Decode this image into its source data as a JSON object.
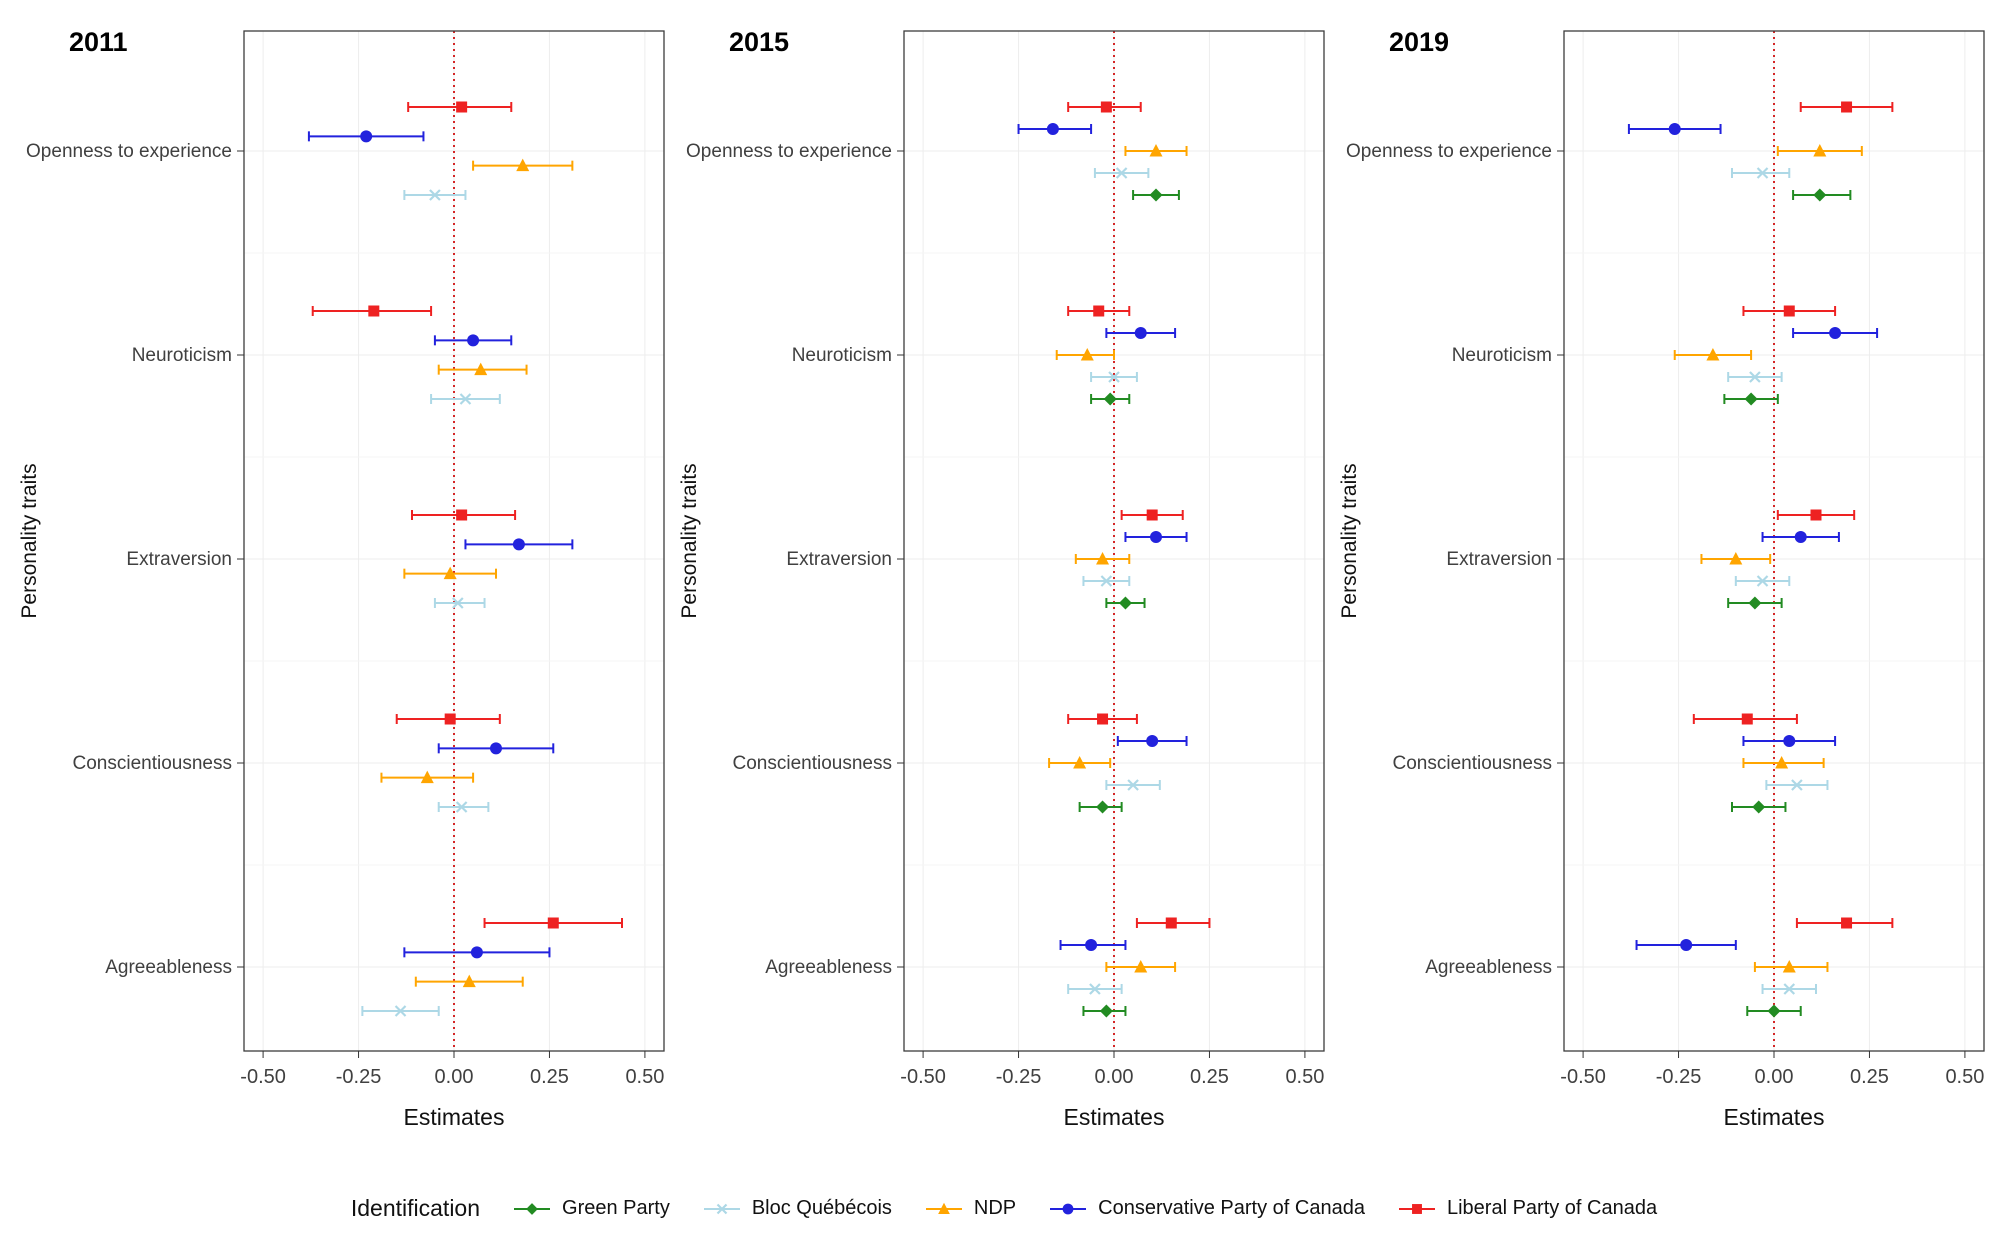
{
  "figure": {
    "background": "#ffffff",
    "legend": {
      "title": "Identification",
      "position": "bottom",
      "order": [
        "Green Party",
        "Bloc Québécois",
        "NDP",
        "Conservative Party of Canada",
        "Liberal Party of Canada"
      ]
    }
  },
  "chart_data": {
    "type": "pointrange",
    "xlabel": "Estimates",
    "ylabel": "Personality traits",
    "xlim": [
      -0.55,
      0.55
    ],
    "x_tick_values": [
      -0.5,
      -0.25,
      0,
      0.25,
      0.5
    ],
    "x_tick_labels": [
      "-0.50",
      "-0.25",
      "0.00",
      "0.25",
      "0.50"
    ],
    "grid": "light gray major gridlines, white panel background, thin dark panel border",
    "reference_line": {
      "x": 0,
      "color": "#CC0000",
      "style": "dotted"
    },
    "traits": [
      "Openness to experience",
      "Neuroticism",
      "Extraversion",
      "Conscientiousness",
      "Agreeableness"
    ],
    "row_order_top_to_bottom": [
      "Liberal Party of Canada",
      "Conservative Party of Canada",
      "NDP",
      "Bloc Québécois",
      "Green Party"
    ],
    "value_format": [
      "estimate",
      "ci_low",
      "ci_high"
    ],
    "parties": {
      "Green Party": {
        "marker": "diamond",
        "color": "#228B22"
      },
      "Bloc Québécois": {
        "marker": "x",
        "color": "#ADD8E6"
      },
      "NDP": {
        "marker": "triangle",
        "color": "#FFA500"
      },
      "Conservative Party of Canada": {
        "marker": "circle",
        "color": "#2222DD"
      },
      "Liberal Party of Canada": {
        "marker": "square",
        "color": "#EE2222"
      }
    },
    "panels": [
      {
        "title": "2011",
        "series": [
          {
            "party": "Liberal Party of Canada",
            "values": [
              [
                0.02,
                -0.12,
                0.15
              ],
              [
                -0.21,
                -0.37,
                -0.06
              ],
              [
                0.02,
                -0.11,
                0.16
              ],
              [
                -0.01,
                -0.15,
                0.12
              ],
              [
                0.26,
                0.08,
                0.44
              ]
            ]
          },
          {
            "party": "Conservative Party of Canada",
            "values": [
              [
                -0.23,
                -0.38,
                -0.08
              ],
              [
                0.05,
                -0.05,
                0.15
              ],
              [
                0.17,
                0.03,
                0.31
              ],
              [
                0.11,
                -0.04,
                0.26
              ],
              [
                0.06,
                -0.13,
                0.25
              ]
            ]
          },
          {
            "party": "NDP",
            "values": [
              [
                0.18,
                0.05,
                0.31
              ],
              [
                0.07,
                -0.04,
                0.19
              ],
              [
                -0.01,
                -0.13,
                0.11
              ],
              [
                -0.07,
                -0.19,
                0.05
              ],
              [
                0.04,
                -0.1,
                0.18
              ]
            ]
          },
          {
            "party": "Bloc Québécois",
            "values": [
              [
                -0.05,
                -0.13,
                0.03
              ],
              [
                0.03,
                -0.06,
                0.12
              ],
              [
                0.01,
                -0.05,
                0.08
              ],
              [
                0.02,
                -0.04,
                0.09
              ],
              [
                -0.14,
                -0.24,
                -0.04
              ]
            ]
          }
        ]
      },
      {
        "title": "2015",
        "series": [
          {
            "party": "Liberal Party of Canada",
            "values": [
              [
                -0.02,
                -0.12,
                0.07
              ],
              [
                -0.04,
                -0.12,
                0.04
              ],
              [
                0.1,
                0.02,
                0.18
              ],
              [
                -0.03,
                -0.12,
                0.06
              ],
              [
                0.15,
                0.06,
                0.25
              ]
            ]
          },
          {
            "party": "Conservative Party of Canada",
            "values": [
              [
                -0.16,
                -0.25,
                -0.06
              ],
              [
                0.07,
                -0.02,
                0.16
              ],
              [
                0.11,
                0.03,
                0.19
              ],
              [
                0.1,
                0.01,
                0.19
              ],
              [
                -0.06,
                -0.14,
                0.03
              ]
            ]
          },
          {
            "party": "NDP",
            "values": [
              [
                0.11,
                0.03,
                0.19
              ],
              [
                -0.07,
                -0.15,
                0.0
              ],
              [
                -0.03,
                -0.1,
                0.04
              ],
              [
                -0.09,
                -0.17,
                -0.01
              ],
              [
                0.07,
                -0.02,
                0.16
              ]
            ]
          },
          {
            "party": "Bloc Québécois",
            "values": [
              [
                0.02,
                -0.05,
                0.09
              ],
              [
                0.0,
                -0.06,
                0.06
              ],
              [
                -0.02,
                -0.08,
                0.04
              ],
              [
                0.05,
                -0.02,
                0.12
              ],
              [
                -0.05,
                -0.12,
                0.02
              ]
            ]
          },
          {
            "party": "Green Party",
            "values": [
              [
                0.11,
                0.05,
                0.17
              ],
              [
                -0.01,
                -0.06,
                0.04
              ],
              [
                0.03,
                -0.02,
                0.08
              ],
              [
                -0.03,
                -0.09,
                0.02
              ],
              [
                -0.02,
                -0.08,
                0.03
              ]
            ]
          }
        ]
      },
      {
        "title": "2019",
        "series": [
          {
            "party": "Liberal Party of Canada",
            "values": [
              [
                0.19,
                0.07,
                0.31
              ],
              [
                0.04,
                -0.08,
                0.16
              ],
              [
                0.11,
                0.01,
                0.21
              ],
              [
                -0.07,
                -0.21,
                0.06
              ],
              [
                0.19,
                0.06,
                0.31
              ]
            ]
          },
          {
            "party": "Conservative Party of Canada",
            "values": [
              [
                -0.26,
                -0.38,
                -0.14
              ],
              [
                0.16,
                0.05,
                0.27
              ],
              [
                0.07,
                -0.03,
                0.17
              ],
              [
                0.04,
                -0.08,
                0.16
              ],
              [
                -0.23,
                -0.36,
                -0.1
              ]
            ]
          },
          {
            "party": "NDP",
            "values": [
              [
                0.12,
                0.01,
                0.23
              ],
              [
                -0.16,
                -0.26,
                -0.06
              ],
              [
                -0.1,
                -0.19,
                -0.01
              ],
              [
                0.02,
                -0.08,
                0.13
              ],
              [
                0.04,
                -0.05,
                0.14
              ]
            ]
          },
          {
            "party": "Bloc Québécois",
            "values": [
              [
                -0.03,
                -0.11,
                0.04
              ],
              [
                -0.05,
                -0.12,
                0.02
              ],
              [
                -0.03,
                -0.1,
                0.04
              ],
              [
                0.06,
                -0.02,
                0.14
              ],
              [
                0.04,
                -0.03,
                0.11
              ]
            ]
          },
          {
            "party": "Green Party",
            "values": [
              [
                0.12,
                0.05,
                0.2
              ],
              [
                -0.06,
                -0.13,
                0.01
              ],
              [
                -0.05,
                -0.12,
                0.02
              ],
              [
                -0.04,
                -0.11,
                0.03
              ],
              [
                0.0,
                -0.07,
                0.07
              ]
            ]
          }
        ]
      }
    ]
  }
}
